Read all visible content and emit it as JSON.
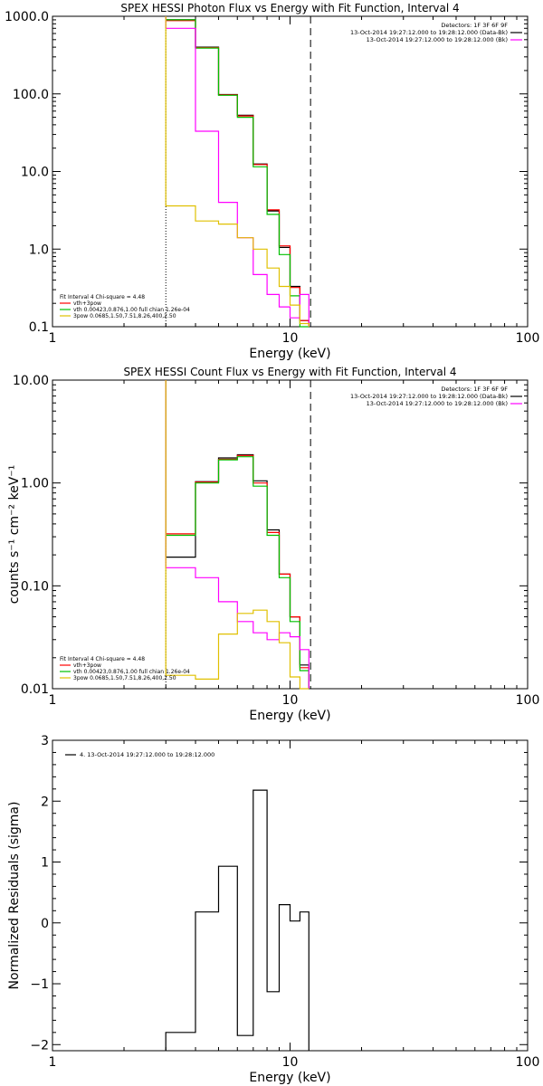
{
  "chart_data": [
    {
      "type": "line",
      "step": true,
      "title": "SPEX HESSI Photon Flux vs Energy with Fit Function, Interval 4",
      "xlabel": "Energy (keV)",
      "ylabel": "",
      "x_scale": "log",
      "y_scale": "log",
      "xlim": [
        1,
        100
      ],
      "ylim": [
        0.1,
        1000
      ],
      "x_ticks": [
        {
          "value": 1,
          "label": "1"
        },
        {
          "value": 10,
          "label": "10"
        },
        {
          "value": 100,
          "label": "100"
        }
      ],
      "y_ticks": [
        {
          "value": 0.1,
          "label": "0.1"
        },
        {
          "value": 1,
          "label": "1.0"
        },
        {
          "value": 10,
          "label": "10.0"
        },
        {
          "value": 100,
          "label": "100.0"
        },
        {
          "value": 1000,
          "label": "1000.0"
        }
      ],
      "bin_edges": [
        3,
        4,
        5,
        6,
        7,
        8,
        9,
        10,
        11,
        12
      ],
      "series": [
        {
          "color": "#000000",
          "values": [
            900,
            400,
            98,
            53,
            12.5,
            3.1,
            1.05,
            0.33,
            0.12
          ]
        },
        {
          "color": "#ff0000",
          "values": [
            880,
            395,
            97,
            52,
            12.3,
            3.2,
            1.1,
            0.32,
            0.12
          ]
        },
        {
          "color": "#00c000",
          "values": [
            900,
            390,
            96,
            50,
            11.5,
            2.8,
            0.85,
            0.25,
            0.1
          ]
        },
        {
          "color": "#ff00ff",
          "values": [
            700,
            33,
            4.0,
            1.4,
            0.47,
            0.26,
            0.18,
            0.13,
            0.26
          ]
        },
        {
          "color": "#e0c000",
          "values": [
            3.6,
            2.3,
            2.1,
            1.4,
            1.0,
            0.57,
            0.33,
            0.19,
            0.11
          ]
        }
      ],
      "vertical_lines": [
        {
          "x": 3,
          "style": "dotted",
          "color": "#000000"
        },
        {
          "x": 12.2,
          "style": "dashed",
          "color": "#000000"
        }
      ],
      "annotations_top_right": [
        {
          "text": "Detectors: 1F 3F 6F 9F",
          "color": "#000000"
        },
        {
          "text": "13-Oct-2014 19:27:12.000 to 19:28:12.000 (Data-Bk)",
          "color": "#000000"
        },
        {
          "text": "13-Oct-2014 19:27:12.000 to 19:28:12.000 (Bk)",
          "color": "#ff00ff"
        }
      ],
      "legend_bottom_left": {
        "header": "Fit Interval 4   Chi-square = 4.48",
        "entries": [
          {
            "text": "vth+3pow",
            "color": "#ff0000"
          },
          {
            "text": "vth 0.00423,0.876,1.00   full chian 1.26e-04",
            "color": "#00c000"
          },
          {
            "text": "3pow 0.0685,1.50,7.51,8.26,400,2.50",
            "color": "#e0c000"
          }
        ]
      }
    },
    {
      "type": "line",
      "step": true,
      "title": "SPEX HESSI Count Flux vs Energy with Fit Function, Interval 4",
      "xlabel": "Energy (keV)",
      "ylabel": "counts s⁻¹ cm⁻² keV⁻¹",
      "x_scale": "log",
      "y_scale": "log",
      "xlim": [
        1,
        100
      ],
      "ylim": [
        0.01,
        10
      ],
      "x_ticks": [
        {
          "value": 1,
          "label": "1"
        },
        {
          "value": 10,
          "label": "10"
        },
        {
          "value": 100,
          "label": "100"
        }
      ],
      "y_ticks": [
        {
          "value": 0.01,
          "label": "0.01"
        },
        {
          "value": 0.1,
          "label": "0.10"
        },
        {
          "value": 1,
          "label": "1.00"
        },
        {
          "value": 10,
          "label": "10.00"
        }
      ],
      "bin_edges": [
        3,
        4,
        5,
        6,
        7,
        8,
        9,
        10,
        11,
        12
      ],
      "series": [
        {
          "color": "#000000",
          "values": [
            0.19,
            1.03,
            1.75,
            1.88,
            1.05,
            0.35,
            0.13,
            0.05,
            0.017
          ]
        },
        {
          "color": "#ff0000",
          "values": [
            0.32,
            1.02,
            1.7,
            1.85,
            1.0,
            0.33,
            0.13,
            0.05,
            0.016
          ]
        },
        {
          "color": "#00c000",
          "values": [
            0.31,
            1.0,
            1.68,
            1.8,
            0.93,
            0.31,
            0.12,
            0.045,
            0.015
          ]
        },
        {
          "color": "#ff00ff",
          "values": [
            0.15,
            0.12,
            0.07,
            0.045,
            0.035,
            0.03,
            0.035,
            0.032,
            0.024
          ]
        },
        {
          "color": "#e0c000",
          "values": [
            0.0135,
            0.0124,
            0.034,
            0.054,
            0.058,
            0.045,
            0.028,
            0.013,
            0.01
          ]
        }
      ],
      "vertical_lines": [
        {
          "x": 3,
          "style": "dotted",
          "color": "#000000"
        },
        {
          "x": 12.2,
          "style": "dashed",
          "color": "#000000"
        }
      ],
      "annotations_top_right": [
        {
          "text": "Detectors: 1F 3F 6F 9F",
          "color": "#000000"
        },
        {
          "text": "13-Oct-2014 19:27:12.000 to 19:28:12.000 (Data-Bk)",
          "color": "#000000"
        },
        {
          "text": "13-Oct-2014 19:27:12.000 to 19:28:12.000 (Bk)",
          "color": "#ff00ff"
        }
      ],
      "legend_bottom_left": {
        "header": "Fit Interval 4   Chi-square = 4.48",
        "entries": [
          {
            "text": "vth+3pow",
            "color": "#ff0000"
          },
          {
            "text": "vth 0.00423,0.876,1.00   full chian 1.26e-04",
            "color": "#00c000"
          },
          {
            "text": "3pow 0.0685,1.50,7.51,8.26,400,2.50",
            "color": "#e0c000"
          }
        ]
      }
    },
    {
      "type": "line",
      "step": true,
      "title": "",
      "xlabel": "Energy (keV)",
      "ylabel": "Normalized Residuals (sigma)",
      "x_scale": "log",
      "y_scale": "linear",
      "xlim": [
        1,
        100
      ],
      "ylim": [
        -2.1,
        3
      ],
      "x_ticks": [
        {
          "value": 1,
          "label": "1"
        },
        {
          "value": 10,
          "label": "10"
        },
        {
          "value": 100,
          "label": "100"
        }
      ],
      "y_ticks": [
        {
          "value": -2,
          "label": "−2"
        },
        {
          "value": -1,
          "label": "−1"
        },
        {
          "value": 0,
          "label": "0"
        },
        {
          "value": 1,
          "label": "1"
        },
        {
          "value": 2,
          "label": "2"
        },
        {
          "value": 3,
          "label": "3"
        }
      ],
      "bin_edges": [
        3,
        4,
        5,
        6,
        7,
        8,
        9,
        10,
        11,
        12
      ],
      "series": [
        {
          "color": "#000000",
          "values": [
            -1.8,
            0.18,
            0.93,
            -1.85,
            2.18,
            -1.13,
            0.3,
            0.03,
            0.18
          ]
        }
      ],
      "vertical_lines": [],
      "annotations_top_right": [],
      "legend_top_left": {
        "entries": [
          {
            "text": "4. 13-Oct-2014 19:27:12.000 to 19:28:12.000",
            "color": "#000000"
          }
        ]
      }
    }
  ]
}
